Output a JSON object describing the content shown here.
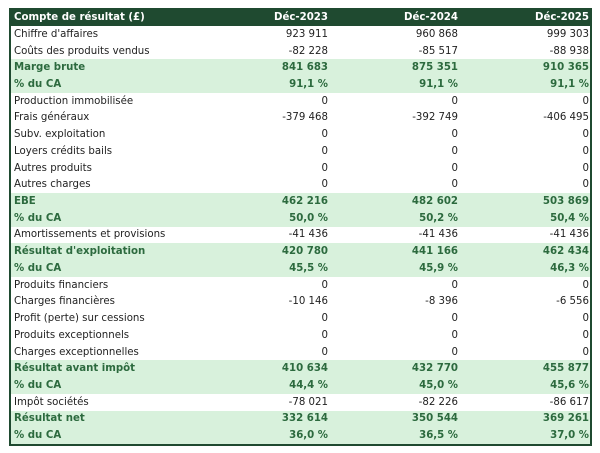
{
  "header": {
    "label": "Compte de résultat (£)",
    "columns": [
      "Déc-2023",
      "Déc-2024",
      "Déc-2025"
    ]
  },
  "colors": {
    "header_bg": "#1f4a30",
    "highlight_bg": "#d8f1dc",
    "highlight_text": "#2c6a3e"
  },
  "rows": [
    {
      "label": "Chiffre d'affaires",
      "values": [
        "923 911",
        "960 868",
        "999 303"
      ],
      "highlight": false
    },
    {
      "label": "Coûts des produits vendus",
      "values": [
        "-82 228",
        "-85 517",
        "-88 938"
      ],
      "highlight": false
    },
    {
      "label": "Marge brute",
      "values": [
        "841 683",
        "875 351",
        "910 365"
      ],
      "highlight": true
    },
    {
      "label": "% du CA",
      "values": [
        "91,1 %",
        "91,1 %",
        "91,1 %"
      ],
      "highlight": true
    },
    {
      "label": "Production immobilisée",
      "values": [
        "0",
        "0",
        "0"
      ],
      "highlight": false
    },
    {
      "label": "Frais généraux",
      "values": [
        "-379 468",
        "-392 749",
        "-406 495"
      ],
      "highlight": false
    },
    {
      "label": "Subv. exploitation",
      "values": [
        "0",
        "0",
        "0"
      ],
      "highlight": false
    },
    {
      "label": "Loyers crédits bails",
      "values": [
        "0",
        "0",
        "0"
      ],
      "highlight": false
    },
    {
      "label": "Autres produits",
      "values": [
        "0",
        "0",
        "0"
      ],
      "highlight": false
    },
    {
      "label": "Autres charges",
      "values": [
        "0",
        "0",
        "0"
      ],
      "highlight": false
    },
    {
      "label": "EBE",
      "values": [
        "462 216",
        "482 602",
        "503 869"
      ],
      "highlight": true
    },
    {
      "label": "% du CA",
      "values": [
        "50,0 %",
        "50,2 %",
        "50,4 %"
      ],
      "highlight": true
    },
    {
      "label": "Amortissements et provisions",
      "values": [
        "-41 436",
        "-41 436",
        "-41 436"
      ],
      "highlight": false
    },
    {
      "label": "Résultat d'exploitation",
      "values": [
        "420 780",
        "441 166",
        "462 434"
      ],
      "highlight": true
    },
    {
      "label": "% du CA",
      "values": [
        "45,5 %",
        "45,9 %",
        "46,3 %"
      ],
      "highlight": true
    },
    {
      "label": "Produits financiers",
      "values": [
        "0",
        "0",
        "0"
      ],
      "highlight": false
    },
    {
      "label": "Charges financières",
      "values": [
        "-10 146",
        "-8 396",
        "-6 556"
      ],
      "highlight": false
    },
    {
      "label": "Profit (perte) sur cessions",
      "values": [
        "0",
        "0",
        "0"
      ],
      "highlight": false
    },
    {
      "label": "Produits exceptionnels",
      "values": [
        "0",
        "0",
        "0"
      ],
      "highlight": false
    },
    {
      "label": "Charges exceptionnelles",
      "values": [
        "0",
        "0",
        "0"
      ],
      "highlight": false
    },
    {
      "label": "Résultat avant impôt",
      "values": [
        "410 634",
        "432 770",
        "455 877"
      ],
      "highlight": true
    },
    {
      "label": "% du CA",
      "values": [
        "44,4 %",
        "45,0 %",
        "45,6 %"
      ],
      "highlight": true
    },
    {
      "label": "Impôt sociétés",
      "values": [
        "-78 021",
        "-82 226",
        "-86 617"
      ],
      "highlight": false
    },
    {
      "label": "Résultat net",
      "values": [
        "332 614",
        "350 544",
        "369 261"
      ],
      "highlight": true
    },
    {
      "label": "% du CA",
      "values": [
        "36,0 %",
        "36,5 %",
        "37,0 %"
      ],
      "highlight": true
    }
  ]
}
